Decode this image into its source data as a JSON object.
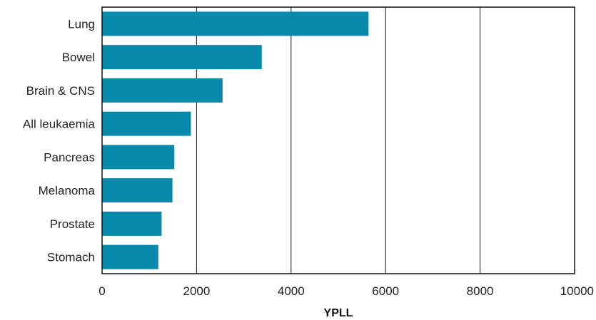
{
  "chart_data": {
    "type": "bar",
    "orientation": "horizontal",
    "categories": [
      "Lung",
      "Bowel",
      "Brain & CNS",
      "All leukaemia",
      "Pancreas",
      "Melanoma",
      "Prostate",
      "Stomach"
    ],
    "values": [
      5640,
      3380,
      2550,
      1880,
      1530,
      1490,
      1260,
      1190
    ],
    "xlabel": "YPLL",
    "ylabel": "",
    "title": "",
    "xlim": [
      0,
      10000
    ],
    "xticks": [
      0,
      2000,
      4000,
      6000,
      8000,
      10000
    ],
    "grid": "vertical",
    "legend": "none",
    "bar_color": "#0a8aab"
  }
}
